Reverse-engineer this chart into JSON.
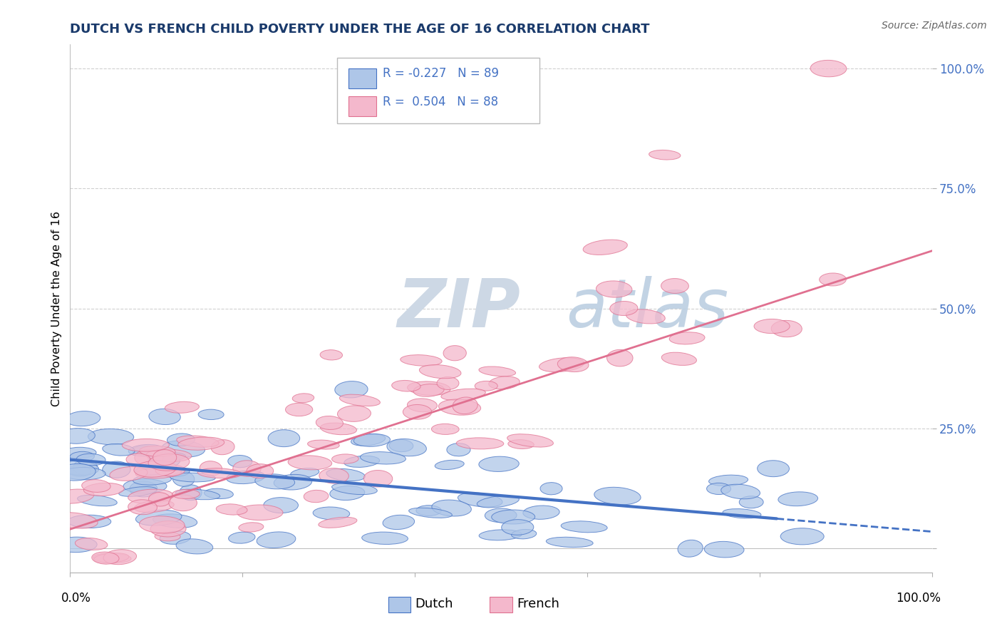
{
  "title": "DUTCH VS FRENCH CHILD POVERTY UNDER THE AGE OF 16 CORRELATION CHART",
  "source": "Source: ZipAtlas.com",
  "ylabel": "Child Poverty Under the Age of 16",
  "xlim": [
    0.0,
    1.0
  ],
  "ylim": [
    -0.05,
    1.05
  ],
  "dutch_R": -0.227,
  "dutch_N": 89,
  "french_R": 0.504,
  "french_N": 88,
  "dutch_color": "#aec6e8",
  "french_color": "#f4b8cc",
  "dutch_line_color": "#4472c4",
  "french_line_color": "#e07090",
  "background_color": "#ffffff",
  "grid_color": "#cccccc",
  "watermark_zip": "ZIP",
  "watermark_atlas": "atlas",
  "watermark_color_zip": "#d0dce8",
  "watermark_color_atlas": "#b8cce0",
  "title_fontsize": 13,
  "source_fontsize": 10,
  "dutch_line_solid_end": 0.82,
  "legend_text_color": "#4472c4",
  "legend_R_color": "#333333"
}
